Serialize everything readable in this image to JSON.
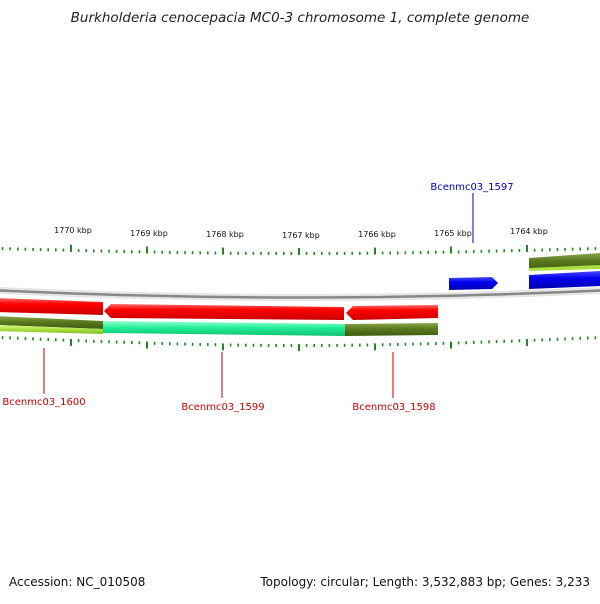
{
  "title": "Burkholderia cenocepacia MC0-3 chromosome 1, complete genome",
  "footer": {
    "accession": "Accession: NC_010508",
    "summary": "Topology: circular; Length: 3,532,883 bp; Genes: 3,233"
  },
  "scale": {
    "unit": "kbp",
    "labels": [
      "1770 kbp",
      "1769 kbp",
      "1768 kbp",
      "1767 kbp",
      "1766 kbp",
      "1765 kbp",
      "1764 kbp"
    ]
  },
  "genes": [
    {
      "label": "Bcenmc03_1597",
      "color": "#0000bb"
    },
    {
      "label": "Bcenmc03_1598",
      "color": "#cc0000"
    },
    {
      "label": "Bcenmc03_1599",
      "color": "#cc0000"
    },
    {
      "label": "Bcenmc03_1600",
      "color": "#cc0000"
    }
  ],
  "colors": {
    "backbone": "#888888",
    "tick": "#228822",
    "cds_forward": "#0000ee",
    "cds_reverse": "#ee0000",
    "feature_olive": "#5a7a1e",
    "feature_green": "#22ee99",
    "feature_lime": "#a8e040"
  }
}
